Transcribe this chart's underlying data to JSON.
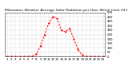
{
  "title": "Milwaukee Weather Average Solar Radiation per Hour W/m2 (Last 24 Hours)",
  "x_labels": [
    "1",
    "2",
    "3",
    "4",
    "5",
    "6",
    "7",
    "8",
    "9",
    "10",
    "11",
    "12",
    "13",
    "14",
    "15",
    "16",
    "17",
    "18",
    "19",
    "20",
    "21",
    "22",
    "23",
    "24"
  ],
  "x_values": [
    1,
    2,
    3,
    4,
    5,
    6,
    7,
    8,
    9,
    10,
    11,
    12,
    13,
    14,
    15,
    16,
    17,
    18,
    19,
    20,
    21,
    22,
    23,
    24
  ],
  "y_values": [
    0,
    0,
    0,
    0,
    0,
    0,
    5,
    30,
    120,
    250,
    380,
    450,
    430,
    300,
    280,
    320,
    200,
    80,
    20,
    0,
    0,
    0,
    0,
    0
  ],
  "y_max": 500,
  "y_ticks": [
    0,
    50,
    100,
    150,
    200,
    250,
    300,
    350,
    400,
    450,
    500
  ],
  "y_tick_labels": [
    "0",
    "50",
    "100",
    "150",
    "200",
    "250",
    "300",
    "350",
    "400",
    "450",
    "500"
  ],
  "line_color": "#ff0000",
  "bg_color": "#ffffff",
  "plot_bg_color": "#ffffff",
  "grid_color": "#888888",
  "title_fontsize": 3.2,
  "tick_fontsize": 2.8
}
